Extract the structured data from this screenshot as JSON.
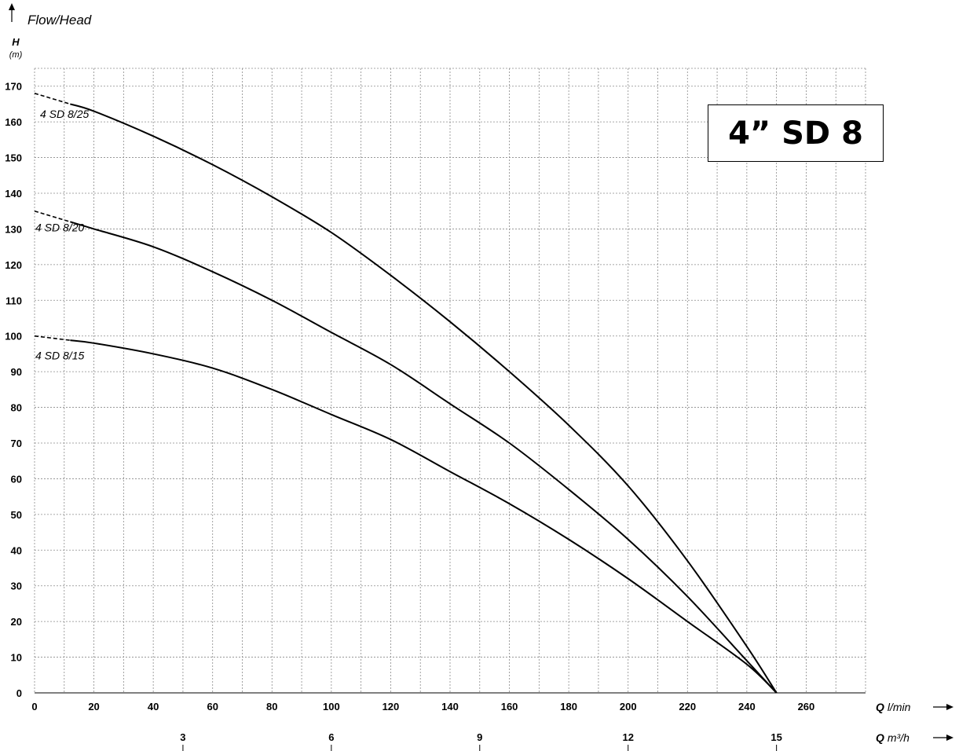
{
  "chart_data": {
    "type": "line",
    "title": "4” SD 8",
    "subtitle": "Flow/Head",
    "ylabel": "H",
    "yunit": "(m)",
    "xlabel_bold": "Q",
    "xlabel_unit": "l/min",
    "x2label_bold": "Q",
    "x2label_unit": "m³/h",
    "xlim": [
      0,
      280
    ],
    "ylim": [
      0,
      175
    ],
    "x_ticks": [
      0,
      20,
      40,
      60,
      80,
      100,
      120,
      140,
      160,
      180,
      200,
      220,
      240,
      260
    ],
    "y_ticks": [
      0,
      10,
      20,
      30,
      40,
      50,
      60,
      70,
      80,
      90,
      100,
      110,
      120,
      130,
      140,
      150,
      160,
      170
    ],
    "x2_ticks": [
      3,
      6,
      9,
      12,
      15
    ],
    "grid": true,
    "series": [
      {
        "name": "4 SD 8/25",
        "x": [
          0,
          20,
          40,
          60,
          80,
          100,
          120,
          140,
          160,
          180,
          200,
          220,
          240,
          250
        ],
        "y": [
          168,
          163,
          156,
          148,
          139,
          129,
          117,
          104,
          90,
          75,
          58,
          37,
          13,
          0
        ]
      },
      {
        "name": "4 SD 8/20",
        "x": [
          0,
          20,
          40,
          60,
          80,
          100,
          120,
          140,
          160,
          180,
          200,
          220,
          240,
          250
        ],
        "y": [
          135,
          130,
          125,
          118,
          110,
          101,
          92,
          81,
          70,
          57,
          43,
          27,
          9,
          0
        ]
      },
      {
        "name": "4 SD 8/15",
        "x": [
          0,
          20,
          40,
          60,
          80,
          100,
          120,
          140,
          160,
          180,
          200,
          220,
          240,
          250
        ],
        "y": [
          100,
          98,
          95,
          91,
          85,
          78,
          71,
          62,
          53,
          43,
          32,
          20,
          8,
          0
        ]
      }
    ]
  }
}
